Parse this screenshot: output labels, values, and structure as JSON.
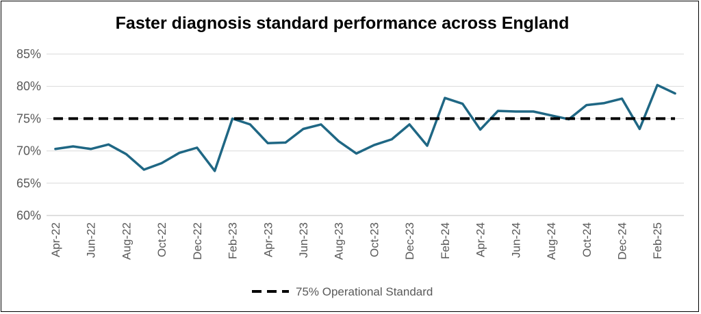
{
  "chart_data": {
    "type": "line",
    "title": "Faster diagnosis standard performance across England",
    "xlabel": "",
    "ylabel": "",
    "ylim": [
      0.6,
      0.85
    ],
    "y_ticks": [
      "60%",
      "65%",
      "70%",
      "75%",
      "80%",
      "85%"
    ],
    "y_tick_values": [
      0.6,
      0.65,
      0.7,
      0.75,
      0.8,
      0.85
    ],
    "x": [
      "Apr-22",
      "May-22",
      "Jun-22",
      "Jul-22",
      "Aug-22",
      "Sep-22",
      "Oct-22",
      "Nov-22",
      "Dec-22",
      "Jan-23",
      "Feb-23",
      "Mar-23",
      "Apr-23",
      "May-23",
      "Jun-23",
      "Jul-23",
      "Aug-23",
      "Sep-23",
      "Oct-23",
      "Nov-23",
      "Dec-23",
      "Jan-24",
      "Feb-24",
      "Mar-24",
      "Apr-24",
      "May-24",
      "Jun-24",
      "Jul-24",
      "Aug-24",
      "Sep-24",
      "Oct-24",
      "Nov-24",
      "Dec-24",
      "Jan-25",
      "Feb-25",
      "Mar-25"
    ],
    "x_tick_labels": [
      "Apr-22",
      "Jun-22",
      "Aug-22",
      "Oct-22",
      "Dec-22",
      "Feb-23",
      "Apr-23",
      "Jun-23",
      "Aug-23",
      "Oct-23",
      "Dec-23",
      "Feb-24",
      "Apr-24",
      "Jun-24",
      "Aug-24",
      "Oct-24",
      "Dec-24",
      "Feb-25"
    ],
    "series": [
      {
        "name": "",
        "color": "#1F6784",
        "values": [
          0.703,
          0.707,
          0.703,
          0.71,
          0.695,
          0.671,
          0.681,
          0.697,
          0.705,
          0.669,
          0.75,
          0.741,
          0.712,
          0.713,
          0.734,
          0.741,
          0.715,
          0.696,
          0.709,
          0.718,
          0.741,
          0.708,
          0.782,
          0.773,
          0.733,
          0.762,
          0.761,
          0.761,
          0.755,
          0.749,
          0.771,
          0.774,
          0.781,
          0.734,
          0.802,
          0.789
        ]
      },
      {
        "name": "75% Operational Standard",
        "color": "#000000",
        "dashed": true,
        "values": [
          0.75,
          0.75,
          0.75,
          0.75,
          0.75,
          0.75,
          0.75,
          0.75,
          0.75,
          0.75,
          0.75,
          0.75,
          0.75,
          0.75,
          0.75,
          0.75,
          0.75,
          0.75,
          0.75,
          0.75,
          0.75,
          0.75,
          0.75,
          0.75,
          0.75,
          0.75,
          0.75,
          0.75,
          0.75,
          0.75,
          0.75,
          0.75,
          0.75,
          0.75,
          0.75,
          0.75
        ]
      }
    ],
    "grid": true,
    "legend_position": "bottom"
  }
}
